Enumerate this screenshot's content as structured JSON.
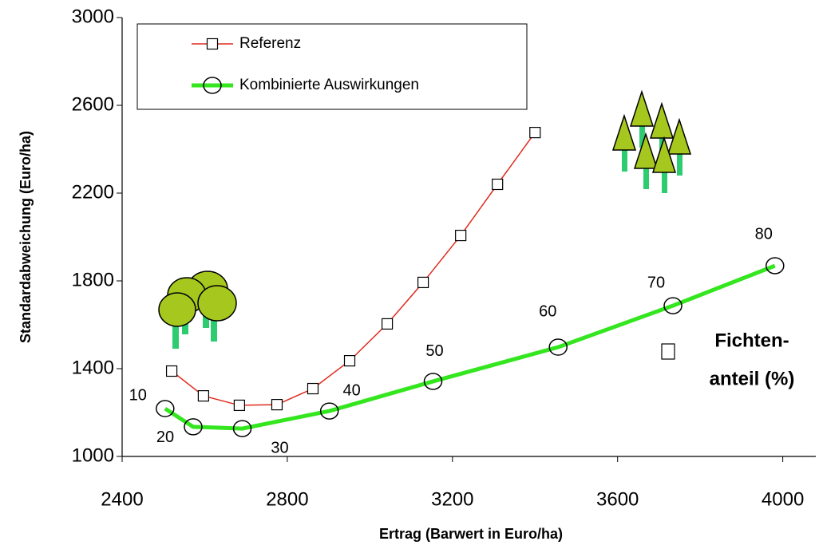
{
  "chart_data": {
    "type": "line",
    "x_label": "Ertrag (Barwert in Euro/ha)",
    "y_label": "Standardabweichung (Euro/ha)",
    "xlim": [
      2400,
      4080
    ],
    "xticks": [
      2400,
      2800,
      3200,
      3600,
      4000
    ],
    "ylim": [
      1000,
      3000
    ],
    "yticks": [
      1000,
      1400,
      1800,
      2200,
      2600,
      3000
    ],
    "annotation": [
      "Fichten-",
      "anteil (%)"
    ],
    "series": [
      {
        "name": "Referenz",
        "color": "#e02a1e",
        "marker": "square",
        "x": [
          2520,
          2597,
          2684,
          2775,
          2862,
          2951,
          3042,
          3129,
          3220,
          3309,
          3400
        ],
        "values": [
          1389,
          1276,
          1233,
          1236,
          1309,
          1436,
          1604,
          1793,
          2007,
          2240,
          2476
        ]
      },
      {
        "name": "Kombinierte Auswirkungen",
        "color": "#33e61e",
        "marker": "circle",
        "x": [
          2504,
          2572,
          2691,
          2902,
          3153,
          3456,
          3734,
          3981
        ],
        "values": [
          1218,
          1135,
          1127,
          1207,
          1342,
          1498,
          1687,
          1869
        ],
        "labels": [
          "10",
          "20",
          "30",
          "40",
          "50",
          "60",
          "70",
          "80"
        ]
      }
    ]
  }
}
